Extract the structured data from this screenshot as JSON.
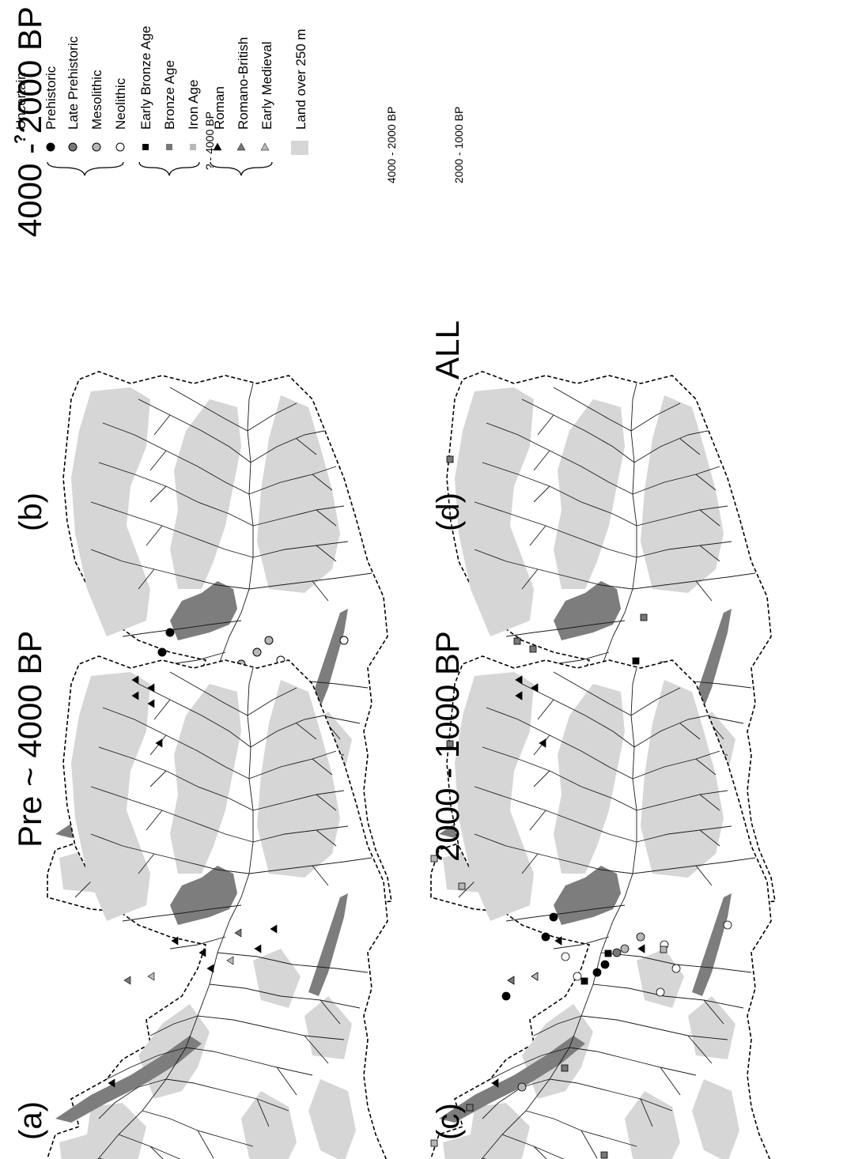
{
  "panels": [
    {
      "id": "a",
      "tag": "(a)",
      "title": "Pre ~ 4000 BP"
    },
    {
      "id": "b",
      "tag": "(b)",
      "title": "4000 - 2000 BP"
    },
    {
      "id": "c",
      "tag": "(c)",
      "title": "2000 - 1000 BP"
    },
    {
      "id": "d",
      "tag": "(d)",
      "title": "ALL"
    }
  ],
  "legend": {
    "uncertain": {
      "symbol": "?",
      "label": "Uncertain"
    },
    "groups": [
      {
        "range": "? - 4000 BP",
        "items": [
          {
            "label": "Prehistoric",
            "shape": "circle",
            "color": "#000000"
          },
          {
            "label": "Late Prehistoric",
            "shape": "circle",
            "color": "#777777"
          },
          {
            "label": "Mesolithic",
            "shape": "circle",
            "color": "#b8b8b8"
          },
          {
            "label": "Neolithic",
            "shape": "circle",
            "color": "#ffffff"
          }
        ]
      },
      {
        "range": "4000 - 2000 BP",
        "items": [
          {
            "label": "Early Bronze Age",
            "shape": "square",
            "color": "#000000"
          },
          {
            "label": "Bronze Age",
            "shape": "square",
            "color": "#777777"
          },
          {
            "label": "Iron Age",
            "shape": "square",
            "color": "#b8b8b8"
          }
        ]
      },
      {
        "range": "2000 - 1000 BP",
        "items": [
          {
            "label": "Roman",
            "shape": "triangle",
            "color": "#000000"
          },
          {
            "label": "Romano-British",
            "shape": "triangle",
            "color": "#777777"
          },
          {
            "label": "Early Medieval",
            "shape": "triangle",
            "color": "#b8b8b8"
          }
        ]
      }
    ],
    "land": {
      "label": "Land over 250 m",
      "color": "#d6d6d6"
    }
  },
  "colors": {
    "land": "#d6d6d6",
    "lake": "#7d7d7d",
    "river": "#1a1a1a",
    "boundary": "#000000"
  }
}
